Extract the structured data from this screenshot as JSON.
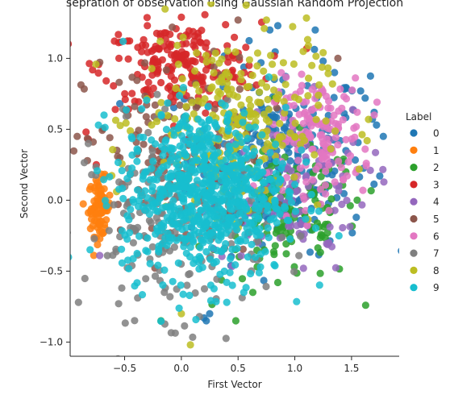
{
  "chart_data": {
    "type": "scatter",
    "title": "sepration of observation using Gaussian Random Projection",
    "xlabel": "First Vector",
    "ylabel": "Second Vector",
    "xlim": [
      -0.98,
      1.92
    ],
    "ylim": [
      -1.1,
      1.4
    ],
    "xticks": [
      -0.5,
      0.0,
      0.5,
      1.0,
      1.5
    ],
    "xtick_labels": [
      "−0.5",
      "0.0",
      "0.5",
      "1.0",
      "1.5"
    ],
    "yticks": [
      -1.0,
      -0.5,
      0.0,
      0.5,
      1.0
    ],
    "ytick_labels": [
      "−1.0",
      "−0.5",
      "0.0",
      "0.5",
      "1.0"
    ],
    "grid": false,
    "legend": {
      "title": "Label",
      "placement": "right"
    },
    "series": [
      {
        "name": "0",
        "color": "#1f77b4",
        "center": [
          0.85,
          0.3
        ],
        "spread": [
          0.4,
          0.33
        ],
        "n": 240,
        "points": [
          [
            1.58,
            0.77
          ],
          [
            1.62,
            0.72
          ],
          [
            1.72,
            0.53
          ],
          [
            1.78,
            0.45
          ],
          [
            1.7,
            0.62
          ],
          [
            0.22,
            -0.85
          ],
          [
            0.2,
            -0.83
          ],
          [
            0.25,
            -0.8
          ],
          [
            1.25,
            0.98
          ],
          [
            1.18,
            1.2
          ],
          [
            0.78,
            1.2
          ],
          [
            0.85,
            1.23
          ],
          [
            1.4,
            0.42
          ],
          [
            1.45,
            0.35
          ],
          [
            1.35,
            0.9
          ]
        ]
      },
      {
        "name": "1",
        "color": "#ff7f0e",
        "center": [
          -0.72,
          -0.05
        ],
        "spread": [
          0.05,
          0.1
        ],
        "n": 70,
        "points": [
          [
            -0.8,
            -0.2
          ],
          [
            -0.78,
            -0.18
          ],
          [
            -0.75,
            -0.1
          ],
          [
            -0.7,
            0.15
          ],
          [
            -0.68,
            0.08
          ],
          [
            -0.72,
            -0.22
          ]
        ]
      },
      {
        "name": "2",
        "color": "#2ca02c",
        "center": [
          0.95,
          -0.1
        ],
        "spread": [
          0.3,
          0.25
        ],
        "n": 150,
        "points": [
          [
            1.55,
            0.0
          ],
          [
            1.3,
            0.1
          ],
          [
            -0.18,
            -0.85
          ],
          [
            0.48,
            -0.85
          ],
          [
            0.85,
            -0.58
          ],
          [
            0.63,
            -0.65
          ],
          [
            1.45,
            0.2
          ]
        ]
      },
      {
        "name": "3",
        "color": "#d62728",
        "center": [
          0.0,
          0.95
        ],
        "spread": [
          0.35,
          0.15
        ],
        "n": 200,
        "points": [
          [
            -0.3,
            1.23
          ],
          [
            -0.15,
            1.18
          ],
          [
            -0.55,
            1.0
          ],
          [
            -0.75,
            0.25
          ],
          [
            -0.84,
            0.48
          ],
          [
            -0.82,
            0.43
          ],
          [
            0.0,
            1.29
          ],
          [
            -0.1,
            1.17
          ]
        ]
      },
      {
        "name": "4",
        "color": "#9467bd",
        "center": [
          0.95,
          0.1
        ],
        "spread": [
          0.35,
          0.3
        ],
        "n": 110,
        "points": [
          [
            -0.72,
            -0.39
          ],
          [
            1.3,
            -0.3
          ]
        ]
      },
      {
        "name": "5",
        "color": "#8c564b",
        "center": [
          -0.05,
          0.3
        ],
        "spread": [
          0.4,
          0.35
        ],
        "n": 140,
        "points": [
          [
            -0.08,
            1.22
          ],
          [
            0.5,
            1.27
          ],
          [
            1.38,
            1.0
          ]
        ]
      },
      {
        "name": "6",
        "color": "#e377c2",
        "center": [
          1.2,
          0.45
        ],
        "spread": [
          0.2,
          0.2
        ],
        "n": 160,
        "points": [
          [
            1.62,
            0.36
          ],
          [
            1.6,
            0.07
          ],
          [
            1.7,
            0.6
          ],
          [
            1.55,
            0.62
          ]
        ]
      },
      {
        "name": "7",
        "color": "#7f7f7f",
        "center": [
          -0.05,
          -0.15
        ],
        "spread": [
          0.4,
          0.33
        ],
        "n": 200,
        "points": [
          [
            -0.82,
            0.4
          ],
          [
            -0.79,
            0.18
          ],
          [
            -0.1,
            -0.68
          ],
          [
            -0.15,
            -0.65
          ],
          [
            0.05,
            -0.6
          ]
        ]
      },
      {
        "name": "8",
        "color": "#bcbd22",
        "center": [
          0.45,
          0.55
        ],
        "spread": [
          0.4,
          0.32
        ],
        "n": 260,
        "points": [
          [
            0.08,
            -1.02
          ],
          [
            1.15,
            0.95
          ],
          [
            1.25,
            1.04
          ],
          [
            1.65,
            0.57
          ],
          [
            0.0,
            -0.8
          ],
          [
            0.75,
            1.27
          ],
          [
            1.12,
            1.09
          ]
        ]
      },
      {
        "name": "9",
        "color": "#17becf",
        "center": [
          0.2,
          0.05
        ],
        "spread": [
          0.36,
          0.3
        ],
        "n": 700,
        "points": [
          [
            0.4,
            -0.72
          ],
          [
            0.55,
            -0.65
          ],
          [
            0.45,
            -0.6
          ]
        ]
      }
    ]
  }
}
